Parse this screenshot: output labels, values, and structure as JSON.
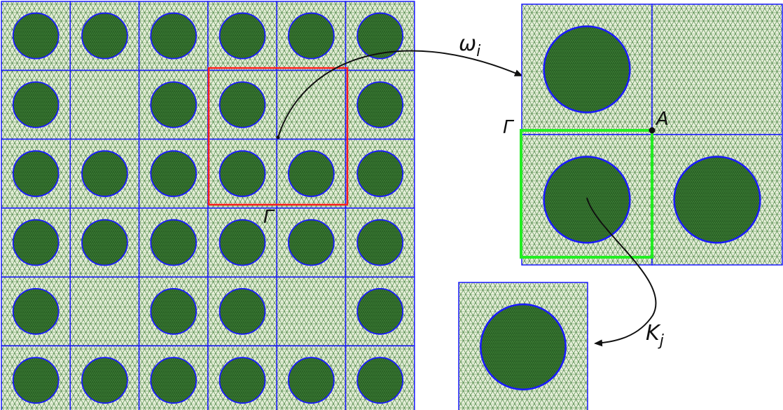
{
  "colors": {
    "mesh_light": "#e6efd9",
    "mesh_dark": "#2f6b2a",
    "mesh_line": "#1f5c1d",
    "cell_border": "#1a1aff",
    "circle": "#1a1aff",
    "highlight_red": "#ff2020",
    "highlight_green": "#22ee22",
    "arrow": "#111111"
  },
  "grid": {
    "rows": 6,
    "cols": 6,
    "inclusion_map": [
      [
        1,
        1,
        1,
        1,
        1,
        1
      ],
      [
        1,
        0,
        1,
        1,
        0,
        1
      ],
      [
        1,
        1,
        1,
        1,
        1,
        1
      ],
      [
        1,
        1,
        1,
        1,
        1,
        1
      ],
      [
        1,
        0,
        1,
        1,
        0,
        1
      ],
      [
        1,
        1,
        1,
        1,
        1,
        1
      ]
    ]
  },
  "patch": {
    "inclusion_map": [
      [
        1,
        0
      ],
      [
        1,
        1
      ]
    ]
  },
  "labels": {
    "omega": "ω",
    "omega_sub": "i",
    "gamma_left": "Γ",
    "gamma_patch": "Γ",
    "point_a": "A",
    "k": "K",
    "k_sub": "j"
  }
}
